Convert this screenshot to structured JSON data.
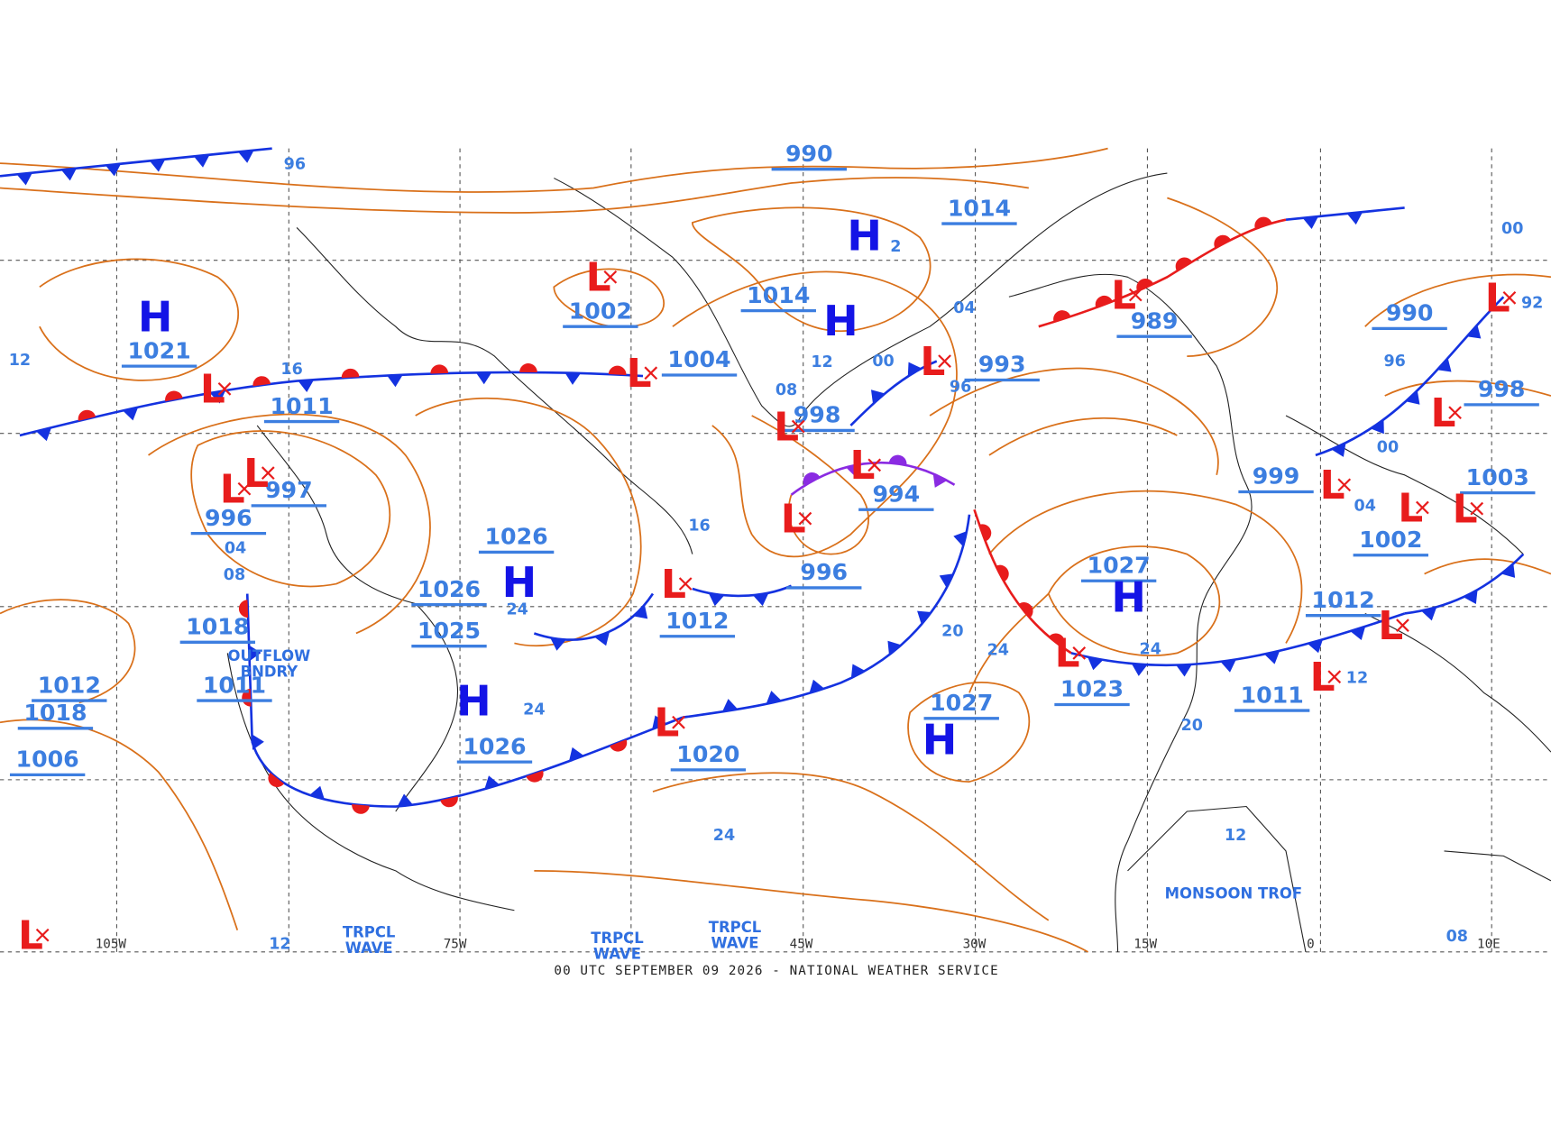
{
  "footer": "00 UTC SEPTEMBER 09 2026 - NATIONAL WEATHER SERVICE",
  "high_symbol": "H",
  "high_subscript": "2",
  "low_symbol": "L",
  "longitude_labels": [
    "105W",
    "75W",
    "45W",
    "30W",
    "15W",
    "0",
    "10E"
  ],
  "pressure_labels": [
    "990",
    "1014",
    "1014",
    "1002",
    "1004",
    "998",
    "994",
    "996",
    "1012",
    "1020",
    "1021",
    "1011",
    "997",
    "996",
    "1026",
    "1026",
    "1025",
    "1018",
    "1011",
    "1012",
    "1018",
    "1006",
    "1026",
    "1027",
    "1027",
    "1023",
    "989",
    "993",
    "999",
    "1003",
    "1002",
    "1012",
    "1011",
    "990",
    "998"
  ],
  "isobar_labels": [
    "96",
    "16",
    "04",
    "08",
    "24",
    "24",
    "12",
    "00",
    "08",
    "04",
    "96",
    "16",
    "20",
    "24",
    "24",
    "20",
    "12",
    "24",
    "96",
    "00",
    "04",
    "12",
    "00",
    "92",
    "12",
    "12",
    "08"
  ],
  "annotations": [
    "OUTFLOW BNDRY",
    "TRPCL WAVE",
    "TRPCL WAVE",
    "TRPCL WAVE",
    "MONSOON TROF"
  ]
}
